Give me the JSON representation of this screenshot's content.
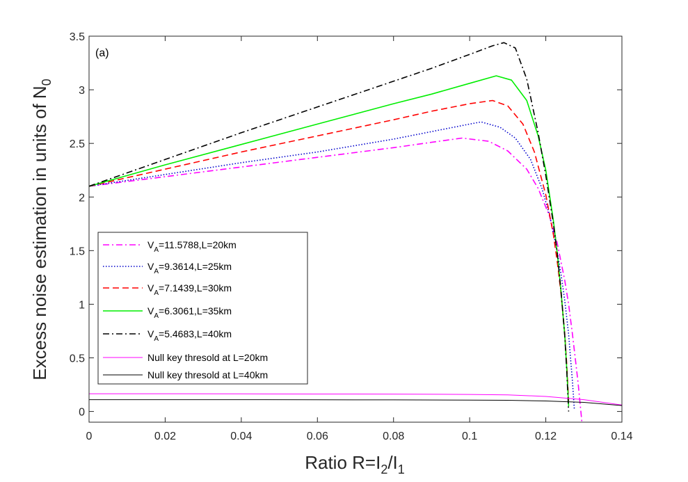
{
  "chart_data": {
    "type": "line",
    "panel_label": "(a)",
    "xlabel": {
      "prefix": "Ratio R=I",
      "sub1": "2",
      "mid": "/I",
      "sub2": "1"
    },
    "ylabel": {
      "prefix": "Excess noise estimation  in units of N",
      "sub": "0"
    },
    "xlim": [
      0,
      0.14
    ],
    "ylim": [
      -0.1,
      3.5
    ],
    "xticks": [
      0,
      0.02,
      0.04,
      0.06,
      0.08,
      0.1,
      0.12,
      0.14
    ],
    "xtick_labels": [
      "0",
      "0.02",
      "0.04",
      "0.06",
      "0.08",
      "0.1",
      "0.12",
      "0.14"
    ],
    "yticks": [
      0,
      0.5,
      1,
      1.5,
      2,
      2.5,
      3,
      3.5
    ],
    "ytick_labels": [
      "0",
      "0.5",
      "1",
      "1.5",
      "2",
      "2.5",
      "3",
      "3.5"
    ],
    "series": [
      {
        "name": "V_A=11.5788,L=20km",
        "label_pre": "V",
        "label_sub": "A",
        "label_post": "=11.5788,L=20km",
        "color": "#ff00ff",
        "dash": "dashdot",
        "x": [
          0,
          0.02,
          0.04,
          0.06,
          0.08,
          0.09,
          0.098,
          0.105,
          0.11,
          0.115,
          0.118,
          0.121,
          0.123,
          0.125,
          0.126,
          0.127,
          0.128,
          0.1285,
          0.129,
          0.1295
        ],
        "y": [
          2.1,
          2.19,
          2.28,
          2.37,
          2.46,
          2.51,
          2.55,
          2.52,
          2.43,
          2.26,
          2.08,
          1.82,
          1.57,
          1.22,
          1.0,
          0.72,
          0.42,
          0.26,
          0.08,
          -0.1
        ]
      },
      {
        "name": "V_A=9.3614,L=25km",
        "label_pre": "V",
        "label_sub": "A",
        "label_post": "=9.3614,L=25km",
        "color": "#0000cc",
        "dash": "dotted",
        "x": [
          0,
          0.02,
          0.04,
          0.06,
          0.08,
          0.09,
          0.1,
          0.103,
          0.108,
          0.112,
          0.116,
          0.119,
          0.121,
          0.123,
          0.124,
          0.125,
          0.126,
          0.1265,
          0.127,
          0.1275
        ],
        "y": [
          2.1,
          2.21,
          2.32,
          2.42,
          2.54,
          2.61,
          2.68,
          2.7,
          2.65,
          2.55,
          2.35,
          2.08,
          1.83,
          1.49,
          1.28,
          1.03,
          0.72,
          0.5,
          0.28,
          0.02
        ]
      },
      {
        "name": "V_A=7.1439,L=30km",
        "label_pre": "V",
        "label_sub": "A",
        "label_post": "=7.1439,L=30km",
        "color": "#ff0000",
        "dash": "dashed",
        "x": [
          0,
          0.02,
          0.04,
          0.06,
          0.08,
          0.09,
          0.1,
          0.106,
          0.11,
          0.114,
          0.117,
          0.12,
          0.122,
          0.123,
          0.124,
          0.125,
          0.1255,
          0.126
        ],
        "y": [
          2.1,
          2.26,
          2.42,
          2.57,
          2.72,
          2.8,
          2.87,
          2.9,
          2.85,
          2.68,
          2.42,
          2.02,
          1.65,
          1.4,
          1.1,
          0.72,
          0.44,
          0.1
        ]
      },
      {
        "name": "V_A=6.3061,L=35km",
        "label_pre": "V",
        "label_sub": "A",
        "label_post": "=6.3061,L=35km",
        "color": "#00ee00",
        "dash": "solid",
        "x": [
          0,
          0.02,
          0.04,
          0.06,
          0.08,
          0.09,
          0.1,
          0.107,
          0.111,
          0.115,
          0.118,
          0.12,
          0.122,
          0.123,
          0.124,
          0.125,
          0.1255,
          0.126
        ],
        "y": [
          2.1,
          2.3,
          2.49,
          2.68,
          2.87,
          2.96,
          3.06,
          3.13,
          3.09,
          2.9,
          2.57,
          2.25,
          1.78,
          1.48,
          1.12,
          0.7,
          0.4,
          0.05
        ]
      },
      {
        "name": "V_A=5.4683,L=40km",
        "label_pre": "V",
        "label_sub": "A",
        "label_post": "=5.4683,L=40km",
        "color": "#000000",
        "dash": "dashdot",
        "x": [
          0,
          0.02,
          0.04,
          0.06,
          0.08,
          0.09,
          0.1,
          0.106,
          0.109,
          0.112,
          0.115,
          0.118,
          0.12,
          0.122,
          0.123,
          0.124,
          0.125,
          0.1255,
          0.126
        ],
        "y": [
          2.1,
          2.35,
          2.6,
          2.84,
          3.08,
          3.2,
          3.33,
          3.41,
          3.44,
          3.39,
          3.1,
          2.6,
          2.2,
          1.75,
          1.48,
          1.12,
          0.7,
          0.38,
          0.0
        ]
      },
      {
        "name": "Null key thresold at L=20km",
        "label_pre": "Null key thresold at L=20km",
        "label_sub": "",
        "label_post": "",
        "color": "#ff00ff",
        "dash": "thin",
        "x": [
          0,
          0.02,
          0.04,
          0.06,
          0.08,
          0.1,
          0.11,
          0.12,
          0.13,
          0.14
        ],
        "y": [
          0.165,
          0.165,
          0.164,
          0.163,
          0.162,
          0.159,
          0.155,
          0.14,
          0.11,
          0.06
        ]
      },
      {
        "name": "Null key thresold at L=40km",
        "label_pre": "Null key thresold at L=40km",
        "label_sub": "",
        "label_post": "",
        "color": "#000000",
        "dash": "thin",
        "x": [
          0,
          0.02,
          0.04,
          0.06,
          0.08,
          0.1,
          0.11,
          0.12,
          0.13,
          0.14
        ],
        "y": [
          0.11,
          0.11,
          0.11,
          0.109,
          0.108,
          0.106,
          0.104,
          0.098,
          0.085,
          0.055
        ]
      }
    ]
  }
}
